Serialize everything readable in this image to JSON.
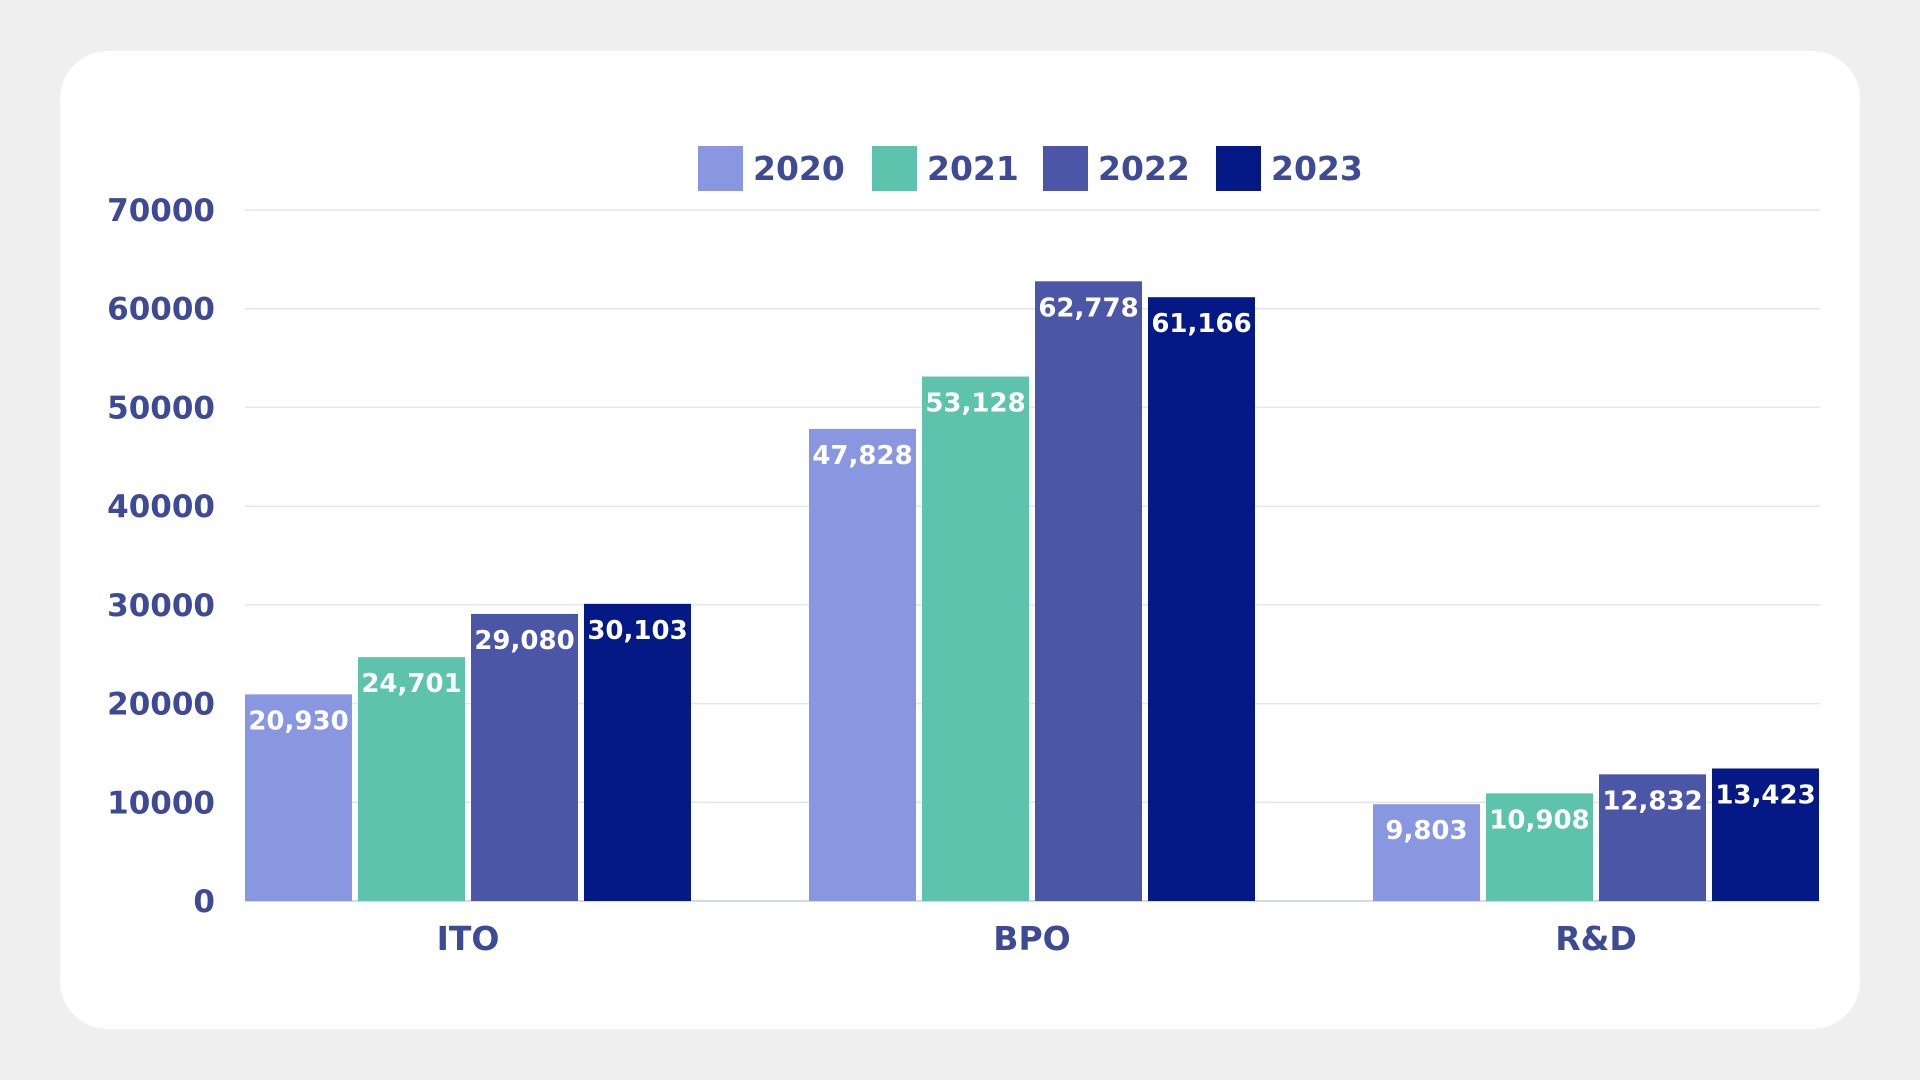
{
  "chart_data": {
    "type": "bar",
    "title": "",
    "xlabel": "",
    "ylabel": "",
    "categories": [
      "ITO",
      "BPO",
      "R&D"
    ],
    "series": [
      {
        "name": "2020",
        "color": "#8897e0",
        "values": [
          20930,
          47828,
          9803
        ],
        "labels": [
          "20,930",
          "47,828",
          "9,803"
        ]
      },
      {
        "name": "2021",
        "color": "#5ec3ad",
        "values": [
          24701,
          53128,
          10908
        ],
        "labels": [
          "24,701",
          "53,128",
          "10,908"
        ]
      },
      {
        "name": "2022",
        "color": "#4b57a6",
        "values": [
          29080,
          62778,
          12832
        ],
        "labels": [
          "29,080",
          "62,778",
          "12,832"
        ]
      },
      {
        "name": "2023",
        "color": "#041886",
        "values": [
          30103,
          61166,
          13423
        ],
        "labels": [
          "30,103",
          "61,166",
          "13,423"
        ]
      }
    ],
    "ylim": [
      0,
      70000
    ],
    "yticks": [
      0,
      10000,
      20000,
      30000,
      40000,
      50000,
      60000,
      70000
    ],
    "ytick_labels": [
      "0",
      "10000",
      "20000",
      "30000",
      "40000",
      "50000",
      "60000",
      "70000"
    ],
    "grid": true,
    "legend_position": "top-center"
  },
  "colors": {
    "background": "#efefef",
    "card": "#ffffff",
    "axis_text": "#3e4a94",
    "gridline": "#e3e6ef"
  }
}
